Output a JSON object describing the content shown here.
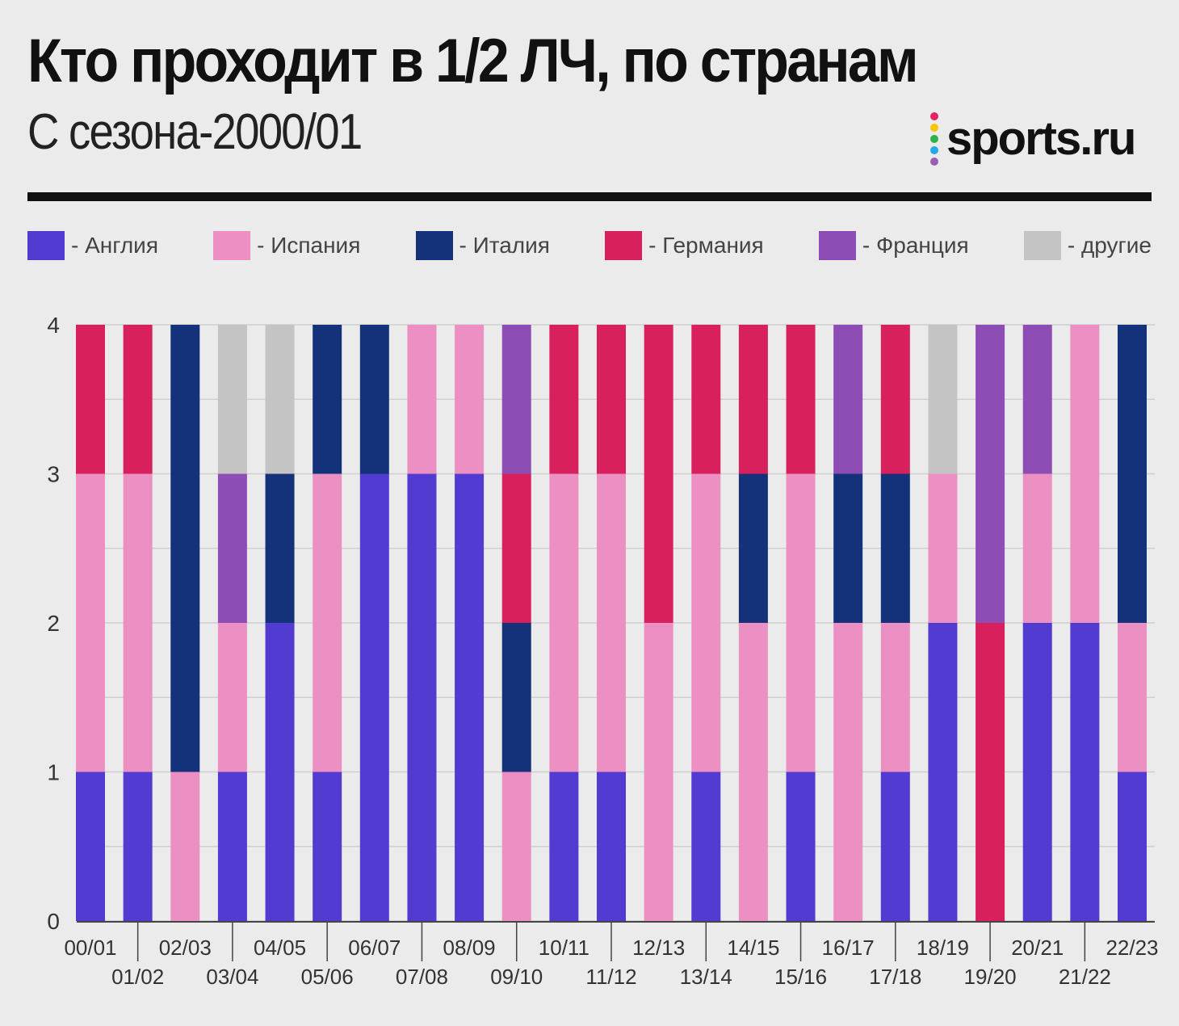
{
  "header": {
    "title": "Кто проходит в 1/2 ЛЧ, по странам",
    "subtitle": "С сезона-2000/01",
    "logo": "sports.ru"
  },
  "colors": {
    "Англия": "#513bd1",
    "Испания": "#ec8fc2",
    "Италия": "#14327a",
    "Германия": "#d8215c",
    "Франция": "#8e4db5",
    "другие": "#c4c4c4"
  },
  "chart_data": {
    "type": "bar",
    "stacked": true,
    "title": "Кто проходит в 1/2 ЛЧ, по странам",
    "subtitle": "С сезона-2000/01",
    "ylim": [
      0,
      4
    ],
    "yticks": [
      0,
      1,
      2,
      3,
      4
    ],
    "legend_position": "top",
    "legend": [
      "- Англия",
      "- Испания",
      "- Италия",
      "- Германия",
      "- Франция",
      "- другие"
    ],
    "categories": [
      "00/01",
      "01/02",
      "02/03",
      "03/04",
      "04/05",
      "05/06",
      "06/07",
      "07/08",
      "08/09",
      "09/10",
      "10/11",
      "11/12",
      "12/13",
      "13/14",
      "14/15",
      "15/16",
      "16/17",
      "17/18",
      "18/19",
      "19/20",
      "20/21",
      "21/22",
      "22/23"
    ],
    "series": [
      {
        "name": "Англия",
        "values": [
          1,
          1,
          0,
          1,
          2,
          1,
          3,
          3,
          3,
          0,
          1,
          1,
          0,
          1,
          0,
          1,
          0,
          1,
          2,
          0,
          2,
          2,
          1
        ]
      },
      {
        "name": "Испания",
        "values": [
          2,
          2,
          1,
          1,
          0,
          2,
          0,
          1,
          1,
          1,
          2,
          2,
          2,
          2,
          2,
          2,
          2,
          1,
          1,
          0,
          1,
          2,
          1
        ]
      },
      {
        "name": "Италия",
        "values": [
          0,
          0,
          3,
          0,
          1,
          1,
          1,
          0,
          0,
          1,
          0,
          0,
          0,
          0,
          1,
          0,
          1,
          1,
          0,
          0,
          0,
          0,
          2
        ]
      },
      {
        "name": "Германия",
        "values": [
          1,
          1,
          0,
          0,
          0,
          0,
          0,
          0,
          0,
          1,
          1,
          1,
          2,
          1,
          1,
          1,
          0,
          1,
          0,
          2,
          0,
          0,
          0
        ]
      },
      {
        "name": "Франция",
        "values": [
          0,
          0,
          0,
          1,
          0,
          0,
          0,
          0,
          0,
          1,
          0,
          0,
          0,
          0,
          0,
          0,
          1,
          0,
          0,
          2,
          1,
          0,
          0
        ]
      },
      {
        "name": "другие",
        "values": [
          0,
          0,
          0,
          1,
          1,
          0,
          0,
          0,
          0,
          0,
          0,
          0,
          0,
          0,
          0,
          0,
          0,
          0,
          1,
          0,
          0,
          0,
          0
        ]
      }
    ]
  }
}
